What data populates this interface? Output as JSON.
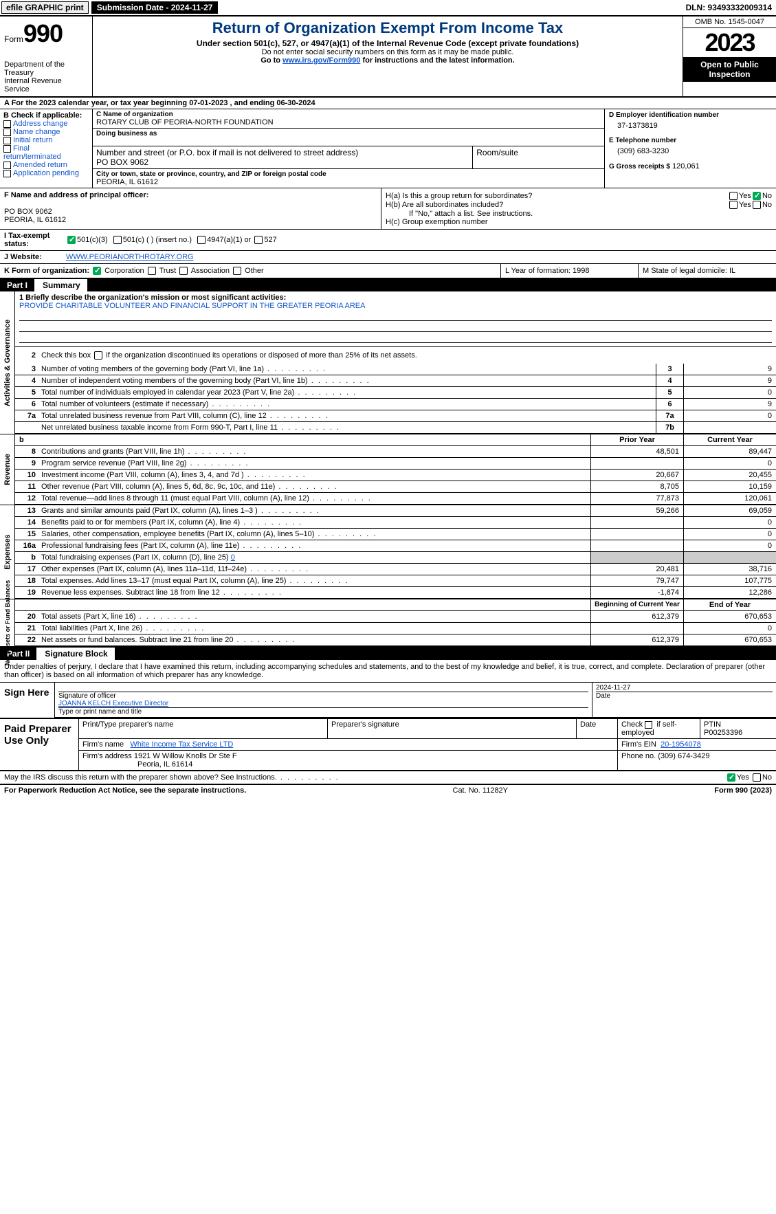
{
  "topbar": {
    "efile": "efile GRAPHIC print",
    "submission": "Submission Date - 2024-11-27",
    "dln": "DLN: 93493332009314"
  },
  "header": {
    "form_word": "Form",
    "form_num": "990",
    "dept": "Department of the Treasury",
    "irs": "Internal Revenue Service",
    "title": "Return of Organization Exempt From Income Tax",
    "sub": "Under section 501(c), 527, or 4947(a)(1) of the Internal Revenue Code (except private foundations)",
    "note1": "Do not enter social security numbers on this form as it may be made public.",
    "note2_pre": "Go to ",
    "note2_link": "www.irs.gov/Form990",
    "note2_post": " for instructions and the latest information.",
    "omb": "OMB No. 1545-0047",
    "year": "2023",
    "open": "Open to Public Inspection"
  },
  "row_a": "A   For the 2023 calendar year, or tax year beginning 07-01-2023    , and ending 06-30-2024",
  "col_b": {
    "heading": "B Check if applicable:",
    "items": [
      "Address change",
      "Name change",
      "Initial return",
      "Final return/terminated",
      "Amended return",
      "Application pending"
    ]
  },
  "org": {
    "c_label": "C Name of organization",
    "name": "ROTARY CLUB OF PEORIA-NORTH FOUNDATION",
    "dba_label": "Doing business as",
    "addr_label": "Number and street (or P.O. box if mail is not delivered to street address)",
    "room_label": "Room/suite",
    "addr": "PO BOX 9062",
    "city_label": "City or town, state or province, country, and ZIP or foreign postal code",
    "city": "PEORIA, IL  61612"
  },
  "col_d": {
    "d_label": "D Employer identification number",
    "ein": "37-1373819",
    "e_label": "E Telephone number",
    "phone": "(309) 683-3230",
    "g_label": "G Gross receipts $",
    "gross": "120,061"
  },
  "row_f": {
    "f_label": "F  Name and address of principal officer:",
    "f_addr1": "PO BOX 9062",
    "f_addr2": "PEORIA, IL  61612",
    "ha": "H(a)  Is this a group return for subordinates?",
    "hb": "H(b)  Are all subordinates included?",
    "hb_note": "If \"No,\" attach a list. See instructions.",
    "hc": "H(c)  Group exemption number",
    "yes": "Yes",
    "no": "No"
  },
  "tax_status": {
    "i_label": "I   Tax-exempt status:",
    "opt1": "501(c)(3)",
    "opt2": "501(c) (  ) (insert no.)",
    "opt3": "4947(a)(1) or",
    "opt4": "527"
  },
  "website": {
    "j_label": "J   Website:",
    "url": "WWW.PEORIANORTHROTARY.ORG"
  },
  "row_k": {
    "k_label": "K Form of organization:",
    "corp": "Corporation",
    "trust": "Trust",
    "assoc": "Association",
    "other": "Other",
    "l": "L Year of formation: 1998",
    "m": "M State of legal domicile: IL"
  },
  "parts": {
    "p1": "Part I",
    "p1_title": "Summary",
    "p2": "Part II",
    "p2_title": "Signature Block"
  },
  "vlabels": {
    "ag": "Activities & Governance",
    "rev": "Revenue",
    "exp": "Expenses",
    "na": "Net Assets or\nFund Balances"
  },
  "summary": {
    "line1_label": "1   Briefly describe the organization's mission or most significant activities:",
    "mission": "PROVIDE CHARITABLE VOLUNTEER AND FINANCIAL SUPPORT IN THE GREATER PEORIA AREA",
    "line2": "Check this box        if the organization discontinued its operations or disposed of more than 25% of its net assets.",
    "lines": [
      {
        "n": "3",
        "d": "Number of voting members of the governing body (Part VI, line 1a)",
        "box": "3",
        "v": "9"
      },
      {
        "n": "4",
        "d": "Number of independent voting members of the governing body (Part VI, line 1b)",
        "box": "4",
        "v": "9"
      },
      {
        "n": "5",
        "d": "Total number of individuals employed in calendar year 2023 (Part V, line 2a)",
        "box": "5",
        "v": "0"
      },
      {
        "n": "6",
        "d": "Total number of volunteers (estimate if necessary)",
        "box": "6",
        "v": "9"
      },
      {
        "n": "7a",
        "d": "Total unrelated business revenue from Part VIII, column (C), line 12",
        "box": "7a",
        "v": "0"
      },
      {
        "n": "",
        "d": "Net unrelated business taxable income from Form 990-T, Part I, line 11",
        "box": "7b",
        "v": ""
      }
    ]
  },
  "rev_hdr": {
    "b": "b",
    "prior": "Prior Year",
    "curr": "Current Year"
  },
  "revenue": [
    {
      "n": "8",
      "d": "Contributions and grants (Part VIII, line 1h)",
      "p": "48,501",
      "c": "89,447"
    },
    {
      "n": "9",
      "d": "Program service revenue (Part VIII, line 2g)",
      "p": "",
      "c": "0"
    },
    {
      "n": "10",
      "d": "Investment income (Part VIII, column (A), lines 3, 4, and 7d )",
      "p": "20,667",
      "c": "20,455"
    },
    {
      "n": "11",
      "d": "Other revenue (Part VIII, column (A), lines 5, 6d, 8c, 9c, 10c, and 11e)",
      "p": "8,705",
      "c": "10,159"
    },
    {
      "n": "12",
      "d": "Total revenue—add lines 8 through 11 (must equal Part VIII, column (A), line 12)",
      "p": "77,873",
      "c": "120,061"
    }
  ],
  "expenses": [
    {
      "n": "13",
      "d": "Grants and similar amounts paid (Part IX, column (A), lines 1–3 )",
      "p": "59,266",
      "c": "69,059"
    },
    {
      "n": "14",
      "d": "Benefits paid to or for members (Part IX, column (A), line 4)",
      "p": "",
      "c": "0"
    },
    {
      "n": "15",
      "d": "Salaries, other compensation, employee benefits (Part IX, column (A), lines 5–10)",
      "p": "",
      "c": "0"
    },
    {
      "n": "16a",
      "d": "Professional fundraising fees (Part IX, column (A), line 11e)",
      "p": "",
      "c": "0"
    }
  ],
  "exp_b": {
    "n": "b",
    "d": "Total fundraising expenses (Part IX, column (D), line 25)",
    "v": "0"
  },
  "expenses2": [
    {
      "n": "17",
      "d": "Other expenses (Part IX, column (A), lines 11a–11d, 11f–24e)",
      "p": "20,481",
      "c": "38,716"
    },
    {
      "n": "18",
      "d": "Total expenses. Add lines 13–17 (must equal Part IX, column (A), line 25)",
      "p": "79,747",
      "c": "107,775"
    },
    {
      "n": "19",
      "d": "Revenue less expenses. Subtract line 18 from line 12",
      "p": "-1,874",
      "c": "12,286"
    }
  ],
  "na_hdr": {
    "b": "Beginning of Current Year",
    "e": "End of Year"
  },
  "netassets": [
    {
      "n": "20",
      "d": "Total assets (Part X, line 16)",
      "p": "612,379",
      "c": "670,653"
    },
    {
      "n": "21",
      "d": "Total liabilities (Part X, line 26)",
      "p": "",
      "c": "0"
    },
    {
      "n": "22",
      "d": "Net assets or fund balances. Subtract line 21 from line 20",
      "p": "612,379",
      "c": "670,653"
    }
  ],
  "sig": {
    "intro": "Under penalties of perjury, I declare that I have examined this return, including accompanying schedules and statements, and to the best of my knowledge and belief, it is true, correct, and complete. Declaration of preparer (other than officer) is based on all information of which preparer has any knowledge.",
    "sign_here": "Sign Here",
    "sig_officer": "Signature of officer",
    "officer": "JOANNA KELCH  Executive Director",
    "type_name": "Type or print name and title",
    "date_lbl": "Date",
    "date": "2024-11-27"
  },
  "paid": {
    "title": "Paid Preparer Use Only",
    "h1": "Print/Type preparer's name",
    "h2": "Preparer's signature",
    "h3": "Date",
    "h4_pre": "Check",
    "h4_post": "if self-employed",
    "h5": "PTIN",
    "ptin": "P00253396",
    "firm_name_lbl": "Firm's name",
    "firm_name": "White Income Tax Service LTD",
    "firm_ein_lbl": "Firm's EIN",
    "firm_ein": "20-1954078",
    "firm_addr_lbl": "Firm's address",
    "firm_addr1": "1921 W Willow Knolls Dr Ste F",
    "firm_addr2": "Peoria, IL  61614",
    "phone_lbl": "Phone no.",
    "phone": "(309) 674-3429"
  },
  "discuss": {
    "q": "May the IRS discuss this return with the preparer shown above? See Instructions.",
    "yes": "Yes",
    "no": "No"
  },
  "footer": {
    "l": "For Paperwork Reduction Act Notice, see the separate instructions.",
    "m": "Cat. No. 11282Y",
    "r": "Form 990 (2023)"
  }
}
